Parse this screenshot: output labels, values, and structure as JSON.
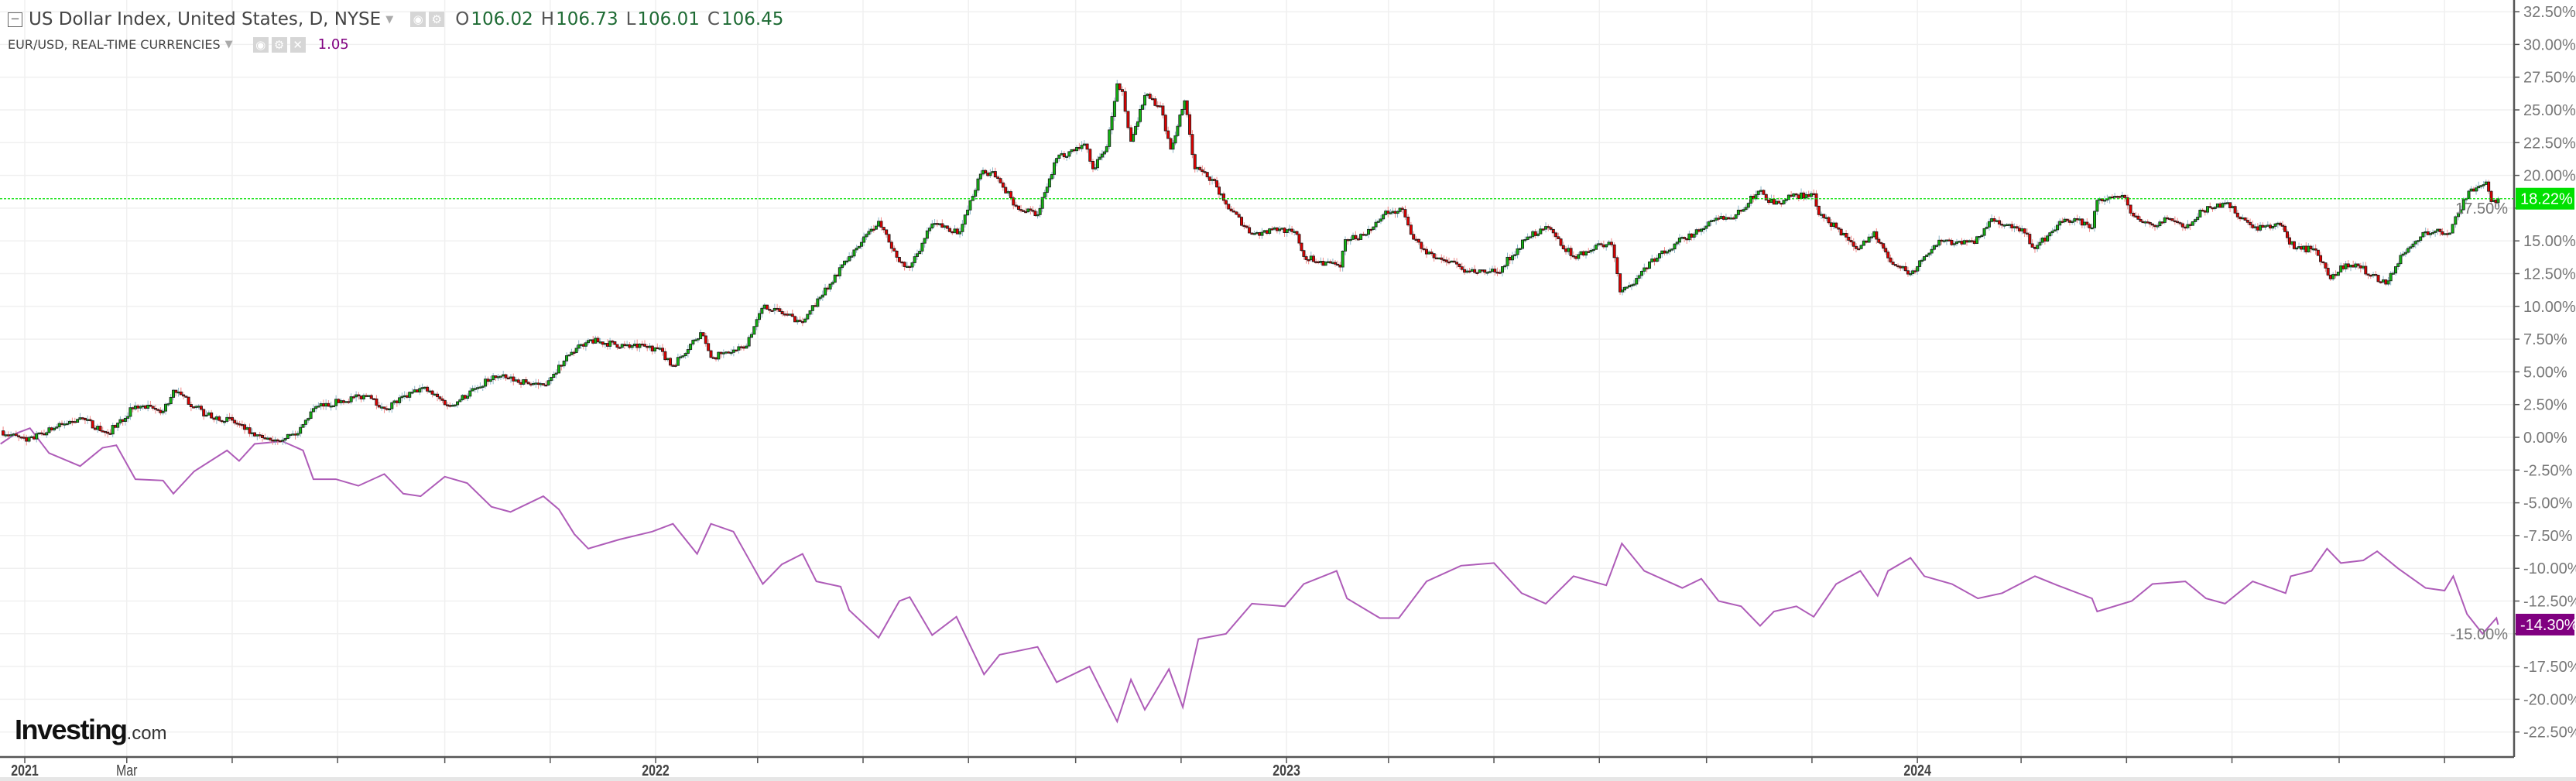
{
  "header": {
    "main_series_title": "US Dollar Index, United States, D, NYSE",
    "ohlc": {
      "o_label": "O",
      "o": "106.02",
      "h_label": "H",
      "h": "106.73",
      "l_label": "L",
      "l": "106.01",
      "c_label": "C",
      "c": "106.45"
    },
    "compare_series_title": "EUR/USD, REAL-TIME CURRENCIES",
    "compare_value": "1.05",
    "icons": [
      "collapse-icon",
      "caret-down-icon",
      "eye-icon",
      "gear-icon",
      "close-icon"
    ]
  },
  "logo": {
    "brand": "Investing",
    "suffix": ".com"
  },
  "colors": {
    "up": "#13b513",
    "down": "#e00000",
    "outline": "#1a1a1a",
    "compare_line": "#ae5cb8",
    "last_main": "#00e000",
    "last_compare": "#800080",
    "grid": "#f0f0f0"
  },
  "chart_data": {
    "type": "line",
    "title": "",
    "xlabel": "",
    "ylabel": "",
    "y_unit": "%",
    "ylim": [
      -24,
      33.5
    ],
    "y_ticks": [
      "32.50%",
      "30.00%",
      "27.50%",
      "25.00%",
      "22.50%",
      "20.00%",
      "17.50%",
      "15.00%",
      "12.50%",
      "10.00%",
      "7.50%",
      "5.00%",
      "2.50%",
      "0.00%",
      "-2.50%",
      "-5.00%",
      "-7.50%",
      "-10.00%",
      "-12.50%",
      "-15.00%",
      "-17.50%",
      "-20.00%",
      "-22.50%"
    ],
    "x_tick_labels": [
      {
        "date": "2021-01-01",
        "label": "2021"
      },
      {
        "date": "2021-03-01",
        "label": "Mar"
      },
      {
        "date": "2022-01-01",
        "label": "2022"
      },
      {
        "date": "2023-01-01",
        "label": "2023"
      },
      {
        "date": "2024-01-01",
        "label": "2024"
      }
    ],
    "grid": true,
    "last_value_labels": {
      "main": "18.22%",
      "compare": "-14.30%"
    },
    "series": [
      {
        "name": "US Dollar Index",
        "style": "candlestick",
        "values": [
          [
            "2020-12-18",
            0.5
          ],
          [
            "2021-01-02",
            -0.3
          ],
          [
            "2021-01-18",
            0.7
          ],
          [
            "2021-02-02",
            1.5
          ],
          [
            "2021-02-18",
            0.3
          ],
          [
            "2021-03-06",
            2.4
          ],
          [
            "2021-03-22",
            2.0
          ],
          [
            "2021-03-28",
            3.6
          ],
          [
            "2021-04-16",
            1.7
          ],
          [
            "2021-05-01",
            1.3
          ],
          [
            "2021-05-14",
            0.1
          ],
          [
            "2021-05-23",
            -0.2
          ],
          [
            "2021-06-08",
            0.3
          ],
          [
            "2021-06-17",
            2.2
          ],
          [
            "2021-07-03",
            2.8
          ],
          [
            "2021-07-19",
            3.2
          ],
          [
            "2021-07-28",
            2.2
          ],
          [
            "2021-08-19",
            3.8
          ],
          [
            "2021-09-04",
            2.4
          ],
          [
            "2021-09-20",
            3.8
          ],
          [
            "2021-09-29",
            4.7
          ],
          [
            "2021-10-18",
            4.2
          ],
          [
            "2021-10-28",
            4.0
          ],
          [
            "2021-11-12",
            6.3
          ],
          [
            "2021-11-23",
            7.4
          ],
          [
            "2021-12-14",
            7.0
          ],
          [
            "2022-01-02",
            6.8
          ],
          [
            "2022-01-11",
            5.5
          ],
          [
            "2022-01-27",
            8.0
          ],
          [
            "2022-02-02",
            6.1
          ],
          [
            "2022-02-21",
            6.8
          ],
          [
            "2022-03-05",
            10.1
          ],
          [
            "2022-03-27",
            8.8
          ],
          [
            "2022-04-12",
            11.7
          ],
          [
            "2022-04-23",
            13.8
          ],
          [
            "2022-05-10",
            16.5
          ],
          [
            "2022-05-22",
            13.4
          ],
          [
            "2022-05-28",
            13.0
          ],
          [
            "2022-06-10",
            16.3
          ],
          [
            "2022-06-26",
            15.7
          ],
          [
            "2022-07-08",
            20.1
          ],
          [
            "2022-07-15",
            20.3
          ],
          [
            "2022-07-30",
            17.4
          ],
          [
            "2022-08-10",
            17.0
          ],
          [
            "2022-08-21",
            21.3
          ],
          [
            "2022-09-06",
            22.4
          ],
          [
            "2022-09-11",
            20.5
          ],
          [
            "2022-09-19",
            22.2
          ],
          [
            "2022-09-25",
            27.0
          ],
          [
            "2022-09-28",
            26.4
          ],
          [
            "2022-10-03",
            22.6
          ],
          [
            "2022-10-11",
            26.1
          ],
          [
            "2022-10-20",
            25.3
          ],
          [
            "2022-10-26",
            22.0
          ],
          [
            "2022-11-03",
            25.7
          ],
          [
            "2022-11-09",
            20.5
          ],
          [
            "2022-11-19",
            19.7
          ],
          [
            "2022-11-27",
            17.8
          ],
          [
            "2022-12-12",
            15.5
          ],
          [
            "2022-12-28",
            15.9
          ],
          [
            "2023-01-07",
            15.5
          ],
          [
            "2023-01-11",
            13.8
          ],
          [
            "2023-02-01",
            13.0
          ],
          [
            "2023-02-04",
            15.1
          ],
          [
            "2023-02-16",
            15.5
          ],
          [
            "2023-02-26",
            17.0
          ],
          [
            "2023-03-09",
            17.4
          ],
          [
            "2023-03-14",
            15.5
          ],
          [
            "2023-03-23",
            14.0
          ],
          [
            "2023-04-05",
            13.4
          ],
          [
            "2023-04-14",
            12.6
          ],
          [
            "2023-05-03",
            12.6
          ],
          [
            "2023-05-19",
            15.1
          ],
          [
            "2023-05-31",
            16.1
          ],
          [
            "2023-06-16",
            13.8
          ],
          [
            "2023-07-02",
            14.7
          ],
          [
            "2023-07-08",
            14.7
          ],
          [
            "2023-07-13",
            11.1
          ],
          [
            "2023-07-21",
            11.7
          ],
          [
            "2023-07-30",
            13.4
          ],
          [
            "2023-08-15",
            14.9
          ],
          [
            "2023-08-29",
            15.9
          ],
          [
            "2023-09-08",
            16.7
          ],
          [
            "2023-09-18",
            17.0
          ],
          [
            "2023-10-01",
            18.8
          ],
          [
            "2023-10-10",
            17.8
          ],
          [
            "2023-10-20",
            18.4
          ],
          [
            "2023-11-02",
            18.6
          ],
          [
            "2023-11-05",
            17.0
          ],
          [
            "2023-11-15",
            16.0
          ],
          [
            "2023-11-28",
            14.4
          ],
          [
            "2023-12-07",
            15.7
          ],
          [
            "2023-12-15",
            13.7
          ],
          [
            "2023-12-28",
            12.5
          ],
          [
            "2024-01-05",
            13.8
          ],
          [
            "2024-01-15",
            15.0
          ],
          [
            "2024-02-03",
            14.8
          ],
          [
            "2024-02-13",
            16.7
          ],
          [
            "2024-03-03",
            15.6
          ],
          [
            "2024-03-09",
            14.4
          ],
          [
            "2024-03-22",
            16.2
          ],
          [
            "2024-04-01",
            16.7
          ],
          [
            "2024-04-11",
            16.0
          ],
          [
            "2024-04-14",
            18.1
          ],
          [
            "2024-04-30",
            18.3
          ],
          [
            "2024-05-05",
            16.9
          ],
          [
            "2024-05-16",
            16.2
          ],
          [
            "2024-05-26",
            16.7
          ],
          [
            "2024-06-04",
            16.0
          ],
          [
            "2024-06-14",
            17.3
          ],
          [
            "2024-06-27",
            17.9
          ],
          [
            "2024-07-13",
            16.0
          ],
          [
            "2024-07-29",
            16.2
          ],
          [
            "2024-08-06",
            14.4
          ],
          [
            "2024-08-17",
            14.4
          ],
          [
            "2024-08-27",
            12.1
          ],
          [
            "2024-09-02",
            13.1
          ],
          [
            "2024-09-12",
            13.1
          ],
          [
            "2024-09-28",
            11.7
          ],
          [
            "2024-10-08",
            14.0
          ],
          [
            "2024-10-21",
            15.7
          ],
          [
            "2024-11-04",
            15.6
          ],
          [
            "2024-11-09",
            17.1
          ],
          [
            "2024-11-15",
            18.8
          ],
          [
            "2024-11-25",
            19.5
          ],
          [
            "2024-11-28",
            18.0
          ],
          [
            "2024-12-02",
            18.22
          ]
        ]
      },
      {
        "name": "EUR/USD",
        "style": "line",
        "values": [
          [
            "2020-12-18",
            -0.5
          ],
          [
            "2020-12-27",
            0.3
          ],
          [
            "2021-01-04",
            0.7
          ],
          [
            "2021-01-15",
            -1.2
          ],
          [
            "2021-02-02",
            -2.2
          ],
          [
            "2021-02-15",
            -0.8
          ],
          [
            "2021-02-23",
            -0.6
          ],
          [
            "2021-03-06",
            -3.2
          ],
          [
            "2021-03-22",
            -3.3
          ],
          [
            "2021-03-28",
            -4.3
          ],
          [
            "2021-04-09",
            -2.6
          ],
          [
            "2021-04-28",
            -1.0
          ],
          [
            "2021-05-05",
            -1.8
          ],
          [
            "2021-05-14",
            -0.5
          ],
          [
            "2021-05-30",
            -0.3
          ],
          [
            "2021-06-11",
            -1.0
          ],
          [
            "2021-06-17",
            -3.2
          ],
          [
            "2021-06-30",
            -3.2
          ],
          [
            "2021-07-13",
            -3.7
          ],
          [
            "2021-07-28",
            -2.8
          ],
          [
            "2021-08-08",
            -4.3
          ],
          [
            "2021-08-18",
            -4.5
          ],
          [
            "2021-09-01",
            -3.0
          ],
          [
            "2021-09-14",
            -3.5
          ],
          [
            "2021-09-28",
            -5.3
          ],
          [
            "2021-10-09",
            -5.7
          ],
          [
            "2021-10-28",
            -4.5
          ],
          [
            "2021-11-06",
            -5.5
          ],
          [
            "2021-11-15",
            -7.4
          ],
          [
            "2021-11-23",
            -8.5
          ],
          [
            "2021-12-11",
            -7.8
          ],
          [
            "2021-12-30",
            -7.2
          ],
          [
            "2022-01-11",
            -6.6
          ],
          [
            "2022-01-25",
            -8.9
          ],
          [
            "2022-02-02",
            -6.6
          ],
          [
            "2022-02-15",
            -7.2
          ],
          [
            "2022-03-04",
            -11.2
          ],
          [
            "2022-03-15",
            -9.7
          ],
          [
            "2022-03-27",
            -8.9
          ],
          [
            "2022-04-04",
            -11.0
          ],
          [
            "2022-04-18",
            -11.4
          ],
          [
            "2022-04-23",
            -13.2
          ],
          [
            "2022-05-10",
            -15.3
          ],
          [
            "2022-05-22",
            -12.5
          ],
          [
            "2022-05-28",
            -12.2
          ],
          [
            "2022-06-10",
            -15.1
          ],
          [
            "2022-06-24",
            -13.7
          ],
          [
            "2022-07-10",
            -18.1
          ],
          [
            "2022-07-19",
            -16.6
          ],
          [
            "2022-08-10",
            -16.0
          ],
          [
            "2022-08-21",
            -18.7
          ],
          [
            "2022-09-09",
            -17.5
          ],
          [
            "2022-09-25",
            -21.7
          ],
          [
            "2022-10-03",
            -18.5
          ],
          [
            "2022-10-11",
            -20.8
          ],
          [
            "2022-10-25",
            -17.7
          ],
          [
            "2022-11-02",
            -20.6
          ],
          [
            "2022-11-11",
            -15.4
          ],
          [
            "2022-11-27",
            -15.0
          ],
          [
            "2022-12-12",
            -12.7
          ],
          [
            "2022-12-31",
            -12.9
          ],
          [
            "2023-01-11",
            -11.2
          ],
          [
            "2023-01-30",
            -10.2
          ],
          [
            "2023-02-05",
            -12.3
          ],
          [
            "2023-02-24",
            -13.8
          ],
          [
            "2023-03-07",
            -13.8
          ],
          [
            "2023-03-23",
            -11.0
          ],
          [
            "2023-04-12",
            -9.8
          ],
          [
            "2023-05-01",
            -9.6
          ],
          [
            "2023-05-17",
            -11.9
          ],
          [
            "2023-05-31",
            -12.7
          ],
          [
            "2023-06-16",
            -10.6
          ],
          [
            "2023-07-05",
            -11.3
          ],
          [
            "2023-07-14",
            -8.1
          ],
          [
            "2023-07-27",
            -10.2
          ],
          [
            "2023-08-18",
            -11.5
          ],
          [
            "2023-08-29",
            -10.8
          ],
          [
            "2023-09-08",
            -12.5
          ],
          [
            "2023-09-21",
            -12.9
          ],
          [
            "2023-10-02",
            -14.4
          ],
          [
            "2023-10-10",
            -13.3
          ],
          [
            "2023-10-23",
            -12.9
          ],
          [
            "2023-11-02",
            -13.7
          ],
          [
            "2023-11-15",
            -11.2
          ],
          [
            "2023-11-29",
            -10.2
          ],
          [
            "2023-12-09",
            -12.1
          ],
          [
            "2023-12-15",
            -10.2
          ],
          [
            "2023-12-28",
            -9.2
          ],
          [
            "2024-01-05",
            -10.6
          ],
          [
            "2024-01-21",
            -11.2
          ],
          [
            "2024-02-05",
            -12.3
          ],
          [
            "2024-02-19",
            -11.9
          ],
          [
            "2024-03-09",
            -10.6
          ],
          [
            "2024-03-22",
            -11.3
          ],
          [
            "2024-04-11",
            -12.3
          ],
          [
            "2024-04-14",
            -13.3
          ],
          [
            "2024-05-04",
            -12.5
          ],
          [
            "2024-05-16",
            -11.2
          ],
          [
            "2024-06-04",
            -11.0
          ],
          [
            "2024-06-16",
            -12.3
          ],
          [
            "2024-06-27",
            -12.7
          ],
          [
            "2024-07-13",
            -11.0
          ],
          [
            "2024-08-01",
            -11.9
          ],
          [
            "2024-08-04",
            -10.6
          ],
          [
            "2024-08-16",
            -10.2
          ],
          [
            "2024-08-25",
            -8.5
          ],
          [
            "2024-09-02",
            -9.6
          ],
          [
            "2024-09-15",
            -9.4
          ],
          [
            "2024-09-23",
            -8.7
          ],
          [
            "2024-10-05",
            -10.0
          ],
          [
            "2024-10-21",
            -11.5
          ],
          [
            "2024-11-01",
            -11.7
          ],
          [
            "2024-11-06",
            -10.6
          ],
          [
            "2024-11-14",
            -13.5
          ],
          [
            "2024-11-23",
            -15.0
          ],
          [
            "2024-12-01",
            -13.8
          ],
          [
            "2024-12-02",
            -14.3
          ]
        ]
      }
    ]
  }
}
